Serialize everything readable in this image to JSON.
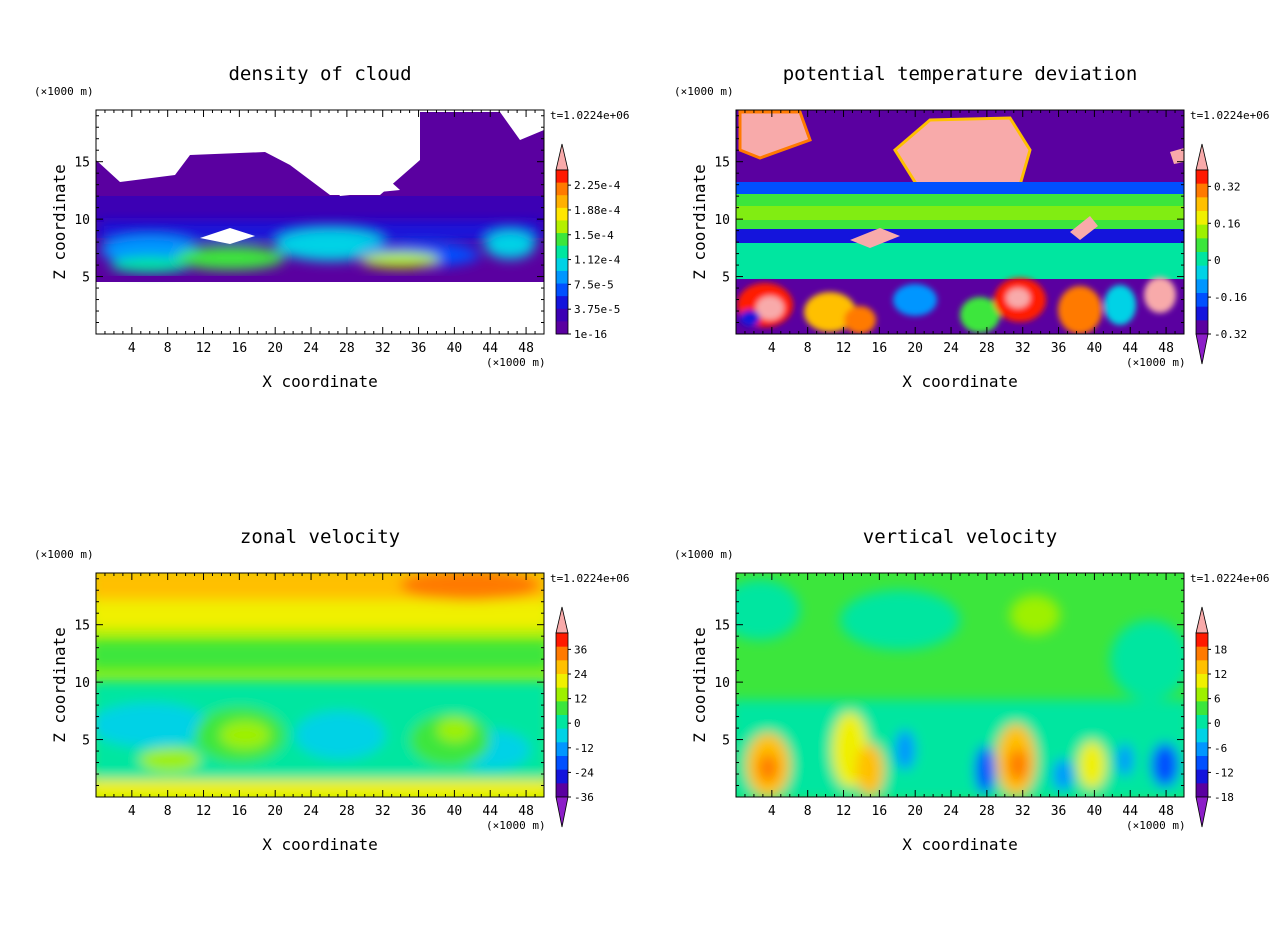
{
  "chart_data": [
    {
      "type": "heatmap",
      "title": "density of cloud",
      "xlabel": "X coordinate",
      "ylabel": "Z coordinate",
      "x_unit": "(×1000 m)",
      "y_unit": "(×1000 m)",
      "time_label": "t=1.0224e+06",
      "xlim": [
        0,
        50
      ],
      "ylim": [
        0,
        19.5
      ],
      "xticks": [
        4,
        8,
        12,
        16,
        20,
        24,
        28,
        32,
        36,
        40,
        44,
        48
      ],
      "yticks": [
        5,
        10,
        15
      ],
      "colorbar": {
        "labels": [
          "2.25e-4",
          "1.88e-4",
          "1.5e-4",
          "1.12e-4",
          "7.5e-5",
          "3.75e-5",
          "1e-16"
        ],
        "colors": [
          "#ff1a00",
          "#ff7a00",
          "#ffb000",
          "#ffe600",
          "#b4f000",
          "#3ce63c",
          "#00e6a0",
          "#00d2e6",
          "#0096ff",
          "#0050ff",
          "#1414dc",
          "#3c00b4",
          "#5a00a0"
        ],
        "overflow_top": "#f8aaaa",
        "overflow_bottom": null
      }
    },
    {
      "type": "heatmap",
      "title": "potential temperature deviation",
      "xlabel": "X coordinate",
      "ylabel": "Z coordinate",
      "x_unit": "(×1000 m)",
      "y_unit": "(×1000 m)",
      "time_label": "t=1.0224e+06",
      "xlim": [
        0,
        50
      ],
      "ylim": [
        0,
        19.5
      ],
      "xticks": [
        4,
        8,
        12,
        16,
        20,
        24,
        28,
        32,
        36,
        40,
        44,
        48
      ],
      "yticks": [
        5,
        10,
        15
      ],
      "colorbar": {
        "labels": [
          "0.32",
          "0.16",
          "0",
          "-0.16",
          "-0.32"
        ],
        "colors": [
          "#ff1a00",
          "#ff7a00",
          "#ffc000",
          "#f0f000",
          "#9ef000",
          "#3ce63c",
          "#00e6a0",
          "#00d2e6",
          "#0096ff",
          "#0050ff",
          "#1414dc",
          "#5a00a0"
        ],
        "overflow_top": "#f8aaaa",
        "overflow_bottom": "#8c1ec8"
      }
    },
    {
      "type": "heatmap",
      "title": "zonal velocity",
      "xlabel": "X coordinate",
      "ylabel": "Z coordinate",
      "x_unit": "(×1000 m)",
      "y_unit": "(×1000 m)",
      "time_label": "t=1.0224e+06",
      "xlim": [
        0,
        50
      ],
      "ylim": [
        0,
        19.5
      ],
      "xticks": [
        4,
        8,
        12,
        16,
        20,
        24,
        28,
        32,
        36,
        40,
        44,
        48
      ],
      "yticks": [
        5,
        10,
        15
      ],
      "colorbar": {
        "labels": [
          "36",
          "24",
          "12",
          "0",
          "-12",
          "-24",
          "-36"
        ],
        "colors": [
          "#ff1a00",
          "#ff7a00",
          "#ffc000",
          "#f0f000",
          "#9ef000",
          "#3ce63c",
          "#00e6a0",
          "#00d2e6",
          "#0096ff",
          "#0050ff",
          "#1414dc",
          "#5a00a0"
        ],
        "overflow_top": "#f8aaaa",
        "overflow_bottom": "#8c1ec8"
      }
    },
    {
      "type": "heatmap",
      "title": "vertical velocity",
      "xlabel": "X coordinate",
      "ylabel": "Z coordinate",
      "x_unit": "(×1000 m)",
      "y_unit": "(×1000 m)",
      "time_label": "t=1.0224e+06",
      "xlim": [
        0,
        50
      ],
      "ylim": [
        0,
        19.5
      ],
      "xticks": [
        4,
        8,
        12,
        16,
        20,
        24,
        28,
        32,
        36,
        40,
        44,
        48
      ],
      "yticks": [
        5,
        10,
        15
      ],
      "colorbar": {
        "labels": [
          "18",
          "12",
          "6",
          "0",
          "-6",
          "-12",
          "-18"
        ],
        "colors": [
          "#ff1a00",
          "#ff7a00",
          "#ffc000",
          "#f0f000",
          "#9ef000",
          "#3ce63c",
          "#00e6a0",
          "#00d2e6",
          "#0096ff",
          "#0050ff",
          "#1414dc",
          "#5a00a0"
        ],
        "overflow_top": "#f8aaaa",
        "overflow_bottom": "#8c1ec8"
      }
    }
  ]
}
